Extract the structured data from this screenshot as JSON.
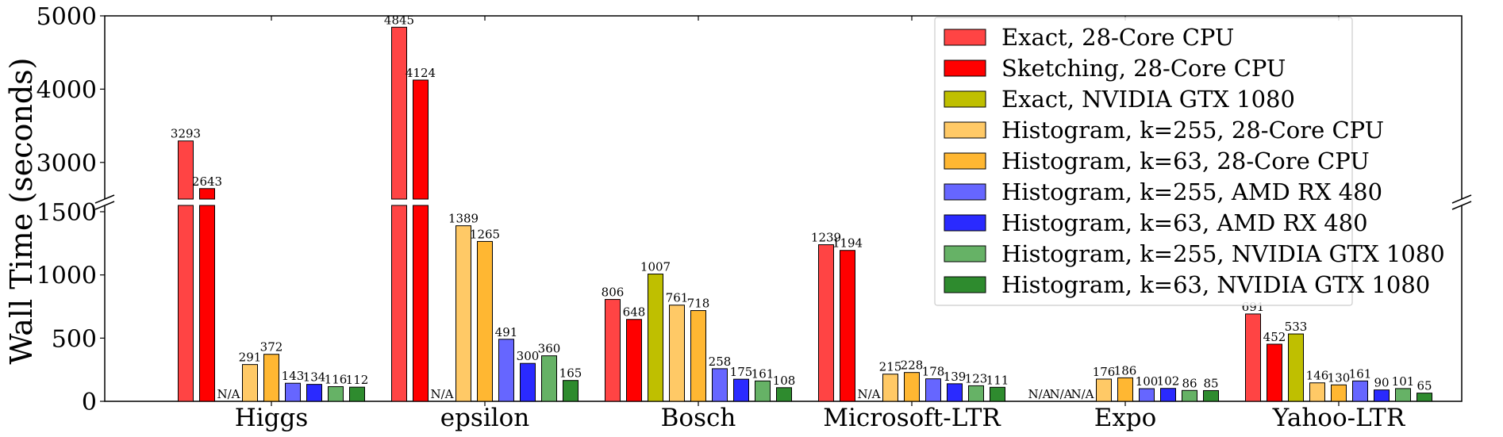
{
  "chart_data": {
    "type": "bar",
    "title": "",
    "xlabel": "",
    "ylabel": "Wall Time (seconds)",
    "categories": [
      "Higgs",
      "epsilon",
      "Bosch",
      "Microsoft-LTR",
      "Expo",
      "Yahoo-LTR"
    ],
    "y_axis_break": {
      "lower_range": [
        0,
        1550
      ],
      "upper_range": [
        2500,
        5000
      ],
      "lower_ticks": [
        0,
        500,
        1000,
        1500
      ],
      "upper_ticks": [
        3000,
        4000,
        5000
      ]
    },
    "legend_position": "top-right",
    "missing_label": "N/A",
    "series": [
      {
        "name": "Exact, 28-Core CPU",
        "color": "#ff4444",
        "values": [
          3293,
          4845,
          806,
          1239,
          null,
          691
        ],
        "labels": [
          "3293",
          "4845",
          "806",
          "1239",
          "N/A",
          "691"
        ]
      },
      {
        "name": "Sketching, 28-Core CPU",
        "color": "#ff0000",
        "values": [
          2643,
          4124,
          648,
          1194,
          null,
          452
        ],
        "labels": [
          "2643",
          "4124",
          "648",
          "1194",
          "N/A",
          "452"
        ]
      },
      {
        "name": "Exact, NVIDIA GTX 1080",
        "color": "#bfbf00",
        "values": [
          null,
          null,
          1007,
          null,
          null,
          533
        ],
        "labels": [
          "N/A",
          "N/A",
          "1007",
          "N/A",
          "N/A",
          "533"
        ]
      },
      {
        "name": "Histogram, k=255, 28-Core CPU",
        "color": "#ffc966",
        "values": [
          291,
          1389,
          761,
          215,
          176,
          146
        ],
        "labels": [
          "291",
          "1389",
          "761",
          "215",
          "176",
          "146"
        ]
      },
      {
        "name": "Histogram, k=63, 28-Core CPU",
        "color": "#ffb732",
        "values": [
          372,
          1265,
          718,
          228,
          186,
          130
        ],
        "labels": [
          "372",
          "1265",
          "718",
          "228",
          "186",
          "130"
        ]
      },
      {
        "name": "Histogram, k=255, AMD RX 480",
        "color": "#6666ff",
        "values": [
          143,
          491,
          258,
          178,
          100,
          161
        ],
        "labels": [
          "143",
          "491",
          "258",
          "178",
          "100",
          "161"
        ]
      },
      {
        "name": "Histogram, k=63, AMD RX 480",
        "color": "#2a2aff",
        "values": [
          134,
          300,
          175,
          139,
          102,
          90
        ],
        "labels": [
          "134",
          "300",
          "175",
          "139",
          "102",
          "90"
        ]
      },
      {
        "name": "Histogram, k=255, NVIDIA GTX 1080",
        "color": "#66b266",
        "values": [
          116,
          360,
          161,
          123,
          86,
          101
        ],
        "labels": [
          "116",
          "360",
          "161",
          "123",
          "86",
          "101"
        ]
      },
      {
        "name": "Histogram, k=63, NVIDIA GTX 1080",
        "color": "#2e8b2e",
        "values": [
          112,
          165,
          108,
          111,
          85,
          65
        ],
        "labels": [
          "112",
          "165",
          "108",
          "111",
          "85",
          "65"
        ]
      }
    ]
  }
}
